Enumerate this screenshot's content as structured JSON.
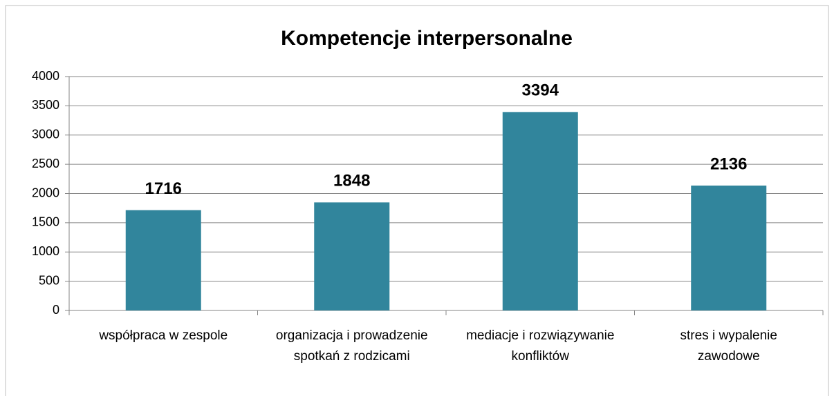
{
  "chart_data": {
    "type": "bar",
    "title": "Kompetencje interpersonalne",
    "categories": [
      "współpraca w zespole",
      "organizacja i prowadzenie spotkań z rodzicami",
      "mediacje i rozwiązywanie konfliktów",
      "stres i wypalenie zawodowe"
    ],
    "values": [
      1716,
      1848,
      3394,
      2136
    ],
    "color": "#31859c",
    "ylim": [
      0,
      4000
    ],
    "yticks": [
      0,
      500,
      1000,
      1500,
      2000,
      2500,
      3000,
      3500,
      4000
    ],
    "grid": true
  }
}
